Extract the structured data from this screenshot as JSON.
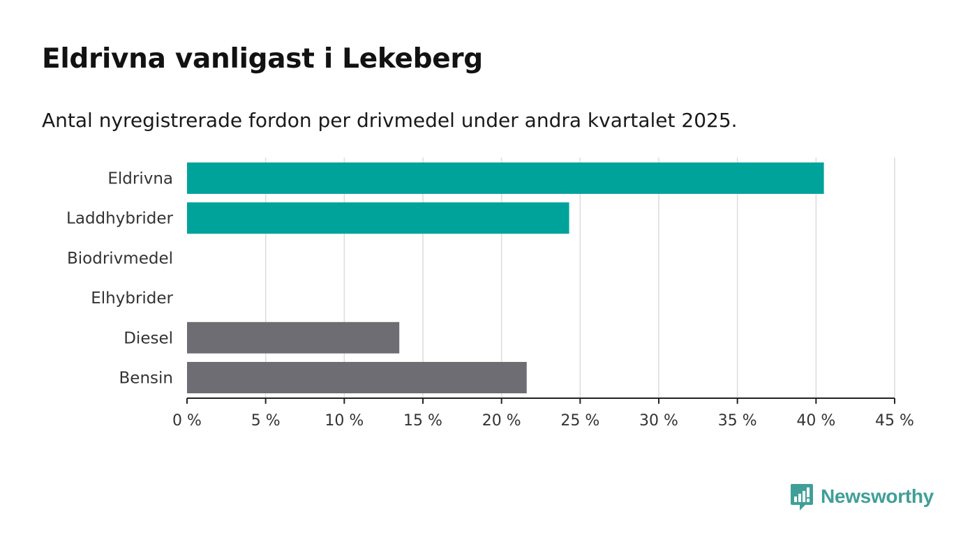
{
  "header": {
    "title": "Eldrivna vanligast i Lekeberg",
    "subtitle": "Antal nyregistrerade fordon per drivmedel under andra kvartalet 2025."
  },
  "brand": {
    "name": "Newsworthy",
    "icon": "newsworthy-logo-icon",
    "color": "#3f9f98"
  },
  "chart_data": {
    "type": "bar",
    "orientation": "horizontal",
    "categories": [
      "Eldrivna",
      "Laddhybrider",
      "Biodrivmedel",
      "Elhybrider",
      "Diesel",
      "Bensin"
    ],
    "values": [
      40.5,
      24.3,
      0,
      0,
      13.5,
      21.6
    ],
    "colors": [
      "#00a39a",
      "#00a39a",
      "#00a39a",
      "#00a39a",
      "#6e6d73",
      "#6e6d73"
    ],
    "xlim": [
      0,
      45
    ],
    "ticks": [
      0,
      5,
      10,
      15,
      20,
      25,
      30,
      35,
      40,
      45
    ],
    "tick_labels": [
      "0 %",
      "5 %",
      "10 %",
      "15 %",
      "20 %",
      "25 %",
      "30 %",
      "35 %",
      "40 %",
      "45 %"
    ],
    "grid": true,
    "legend": "none"
  }
}
